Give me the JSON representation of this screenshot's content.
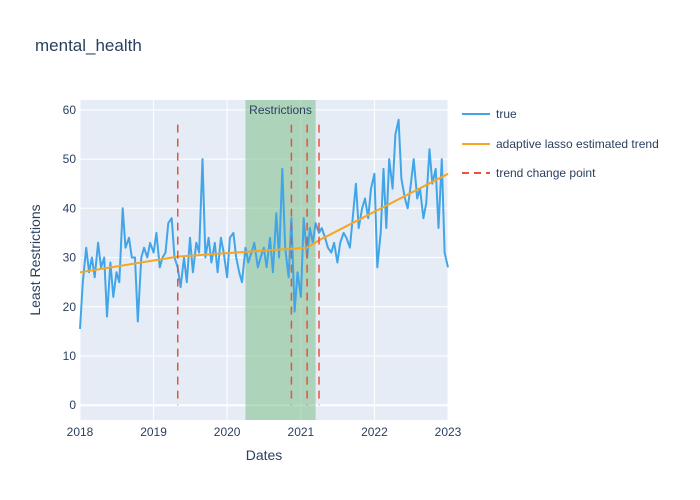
{
  "chart_data": {
    "type": "line",
    "title": "mental_health",
    "xlabel": "Dates",
    "ylabel": "Least Restrictions",
    "xlim": [
      "2018-01-01",
      "2023-01-01"
    ],
    "ylim": [
      -3,
      62
    ],
    "x_ticks": [
      "2018",
      "2019",
      "2020",
      "2021",
      "2022",
      "2023"
    ],
    "y_ticks": [
      0,
      10,
      20,
      30,
      40,
      50,
      60
    ],
    "grid": true,
    "legend_position": "right",
    "colors": {
      "true": "#42a5e8",
      "trend": "#f5a623",
      "change_point": "#e8523f",
      "restrictions_band": "#7fc08a",
      "plot_bg": "#e5ecf6",
      "grid": "#ffffff",
      "text": "#2a3f5f"
    },
    "restrictions": {
      "label": "Restrictions",
      "start": "2020-04-01",
      "end": "2021-03-15"
    },
    "change_points": [
      "2019-05-01",
      "2020-11-15",
      "2021-02-01",
      "2021-04-01"
    ],
    "series": [
      {
        "name": "true",
        "style": "solid",
        "x": [
          "2018-01-01",
          "2018-01-15",
          "2018-02-01",
          "2018-02-15",
          "2018-03-01",
          "2018-03-15",
          "2018-04-01",
          "2018-04-15",
          "2018-05-01",
          "2018-05-15",
          "2018-06-01",
          "2018-06-15",
          "2018-07-01",
          "2018-07-15",
          "2018-08-01",
          "2018-08-15",
          "2018-09-01",
          "2018-09-15",
          "2018-10-01",
          "2018-10-15",
          "2018-11-01",
          "2018-11-15",
          "2018-12-01",
          "2018-12-15",
          "2019-01-01",
          "2019-01-15",
          "2019-02-01",
          "2019-02-15",
          "2019-03-01",
          "2019-03-15",
          "2019-04-01",
          "2019-04-15",
          "2019-05-01",
          "2019-05-15",
          "2019-06-01",
          "2019-06-15",
          "2019-07-01",
          "2019-07-15",
          "2019-08-01",
          "2019-08-15",
          "2019-09-01",
          "2019-09-15",
          "2019-10-01",
          "2019-10-15",
          "2019-11-01",
          "2019-11-15",
          "2019-12-01",
          "2019-12-15",
          "2020-01-01",
          "2020-01-15",
          "2020-02-01",
          "2020-02-15",
          "2020-03-01",
          "2020-03-15",
          "2020-04-01",
          "2020-04-15",
          "2020-05-01",
          "2020-05-15",
          "2020-06-01",
          "2020-06-15",
          "2020-07-01",
          "2020-07-15",
          "2020-08-01",
          "2020-08-15",
          "2020-09-01",
          "2020-09-15",
          "2020-10-01",
          "2020-10-15",
          "2020-11-01",
          "2020-11-15",
          "2020-12-01",
          "2020-12-15",
          "2021-01-01",
          "2021-01-15",
          "2021-02-01",
          "2021-02-15",
          "2021-03-01",
          "2021-03-15",
          "2021-04-01",
          "2021-04-15",
          "2021-05-01",
          "2021-05-15",
          "2021-06-01",
          "2021-06-15",
          "2021-07-01",
          "2021-07-15",
          "2021-08-01",
          "2021-08-15",
          "2021-09-01",
          "2021-09-15",
          "2021-10-01",
          "2021-10-15",
          "2021-11-01",
          "2021-11-15",
          "2021-12-01",
          "2021-12-15",
          "2022-01-01",
          "2022-01-15",
          "2022-02-01",
          "2022-02-15",
          "2022-03-01",
          "2022-03-15",
          "2022-04-01",
          "2022-04-15",
          "2022-05-01",
          "2022-05-15",
          "2022-06-01",
          "2022-06-15",
          "2022-07-01",
          "2022-07-15",
          "2022-08-01",
          "2022-08-15",
          "2022-09-01",
          "2022-09-15",
          "2022-10-01",
          "2022-10-15",
          "2022-11-01",
          "2022-11-15",
          "2022-12-01",
          "2022-12-15",
          "2023-01-01"
        ],
        "values": [
          15.5,
          25,
          32,
          27,
          30,
          26,
          33,
          28,
          30,
          18,
          29,
          22,
          27,
          25,
          40,
          32,
          34,
          30,
          30,
          17,
          30,
          32,
          30,
          33,
          31,
          35,
          28,
          30,
          31,
          37,
          38,
          30,
          28,
          24,
          30,
          25,
          34,
          27,
          33,
          31,
          50,
          30,
          34,
          29,
          33,
          27,
          34,
          31,
          26,
          34,
          35,
          30,
          27,
          25,
          32,
          29,
          31,
          33,
          28,
          30,
          32,
          28,
          34,
          27,
          39,
          30,
          48,
          32,
          26,
          38,
          19,
          27,
          22,
          38,
          30,
          36,
          33,
          37,
          35,
          36,
          34,
          32,
          31,
          33,
          29,
          33,
          35,
          34,
          32,
          38,
          45,
          36,
          40,
          42,
          38,
          44,
          47,
          28,
          35,
          48,
          36,
          50,
          44,
          55,
          58,
          46,
          42,
          40,
          45,
          50,
          42,
          44,
          38,
          41,
          52,
          45,
          48,
          36,
          50,
          31,
          28
        ]
      },
      {
        "name": "adaptive lasso estimated trend",
        "style": "solid",
        "x": [
          "2018-01-01",
          "2019-05-01",
          "2020-11-15",
          "2021-02-01",
          "2021-04-01",
          "2023-01-01"
        ],
        "values": [
          27,
          30.2,
          31.8,
          32,
          33.5,
          47
        ]
      },
      {
        "name": "trend change point",
        "style": "dash",
        "x": [],
        "values": []
      }
    ]
  }
}
